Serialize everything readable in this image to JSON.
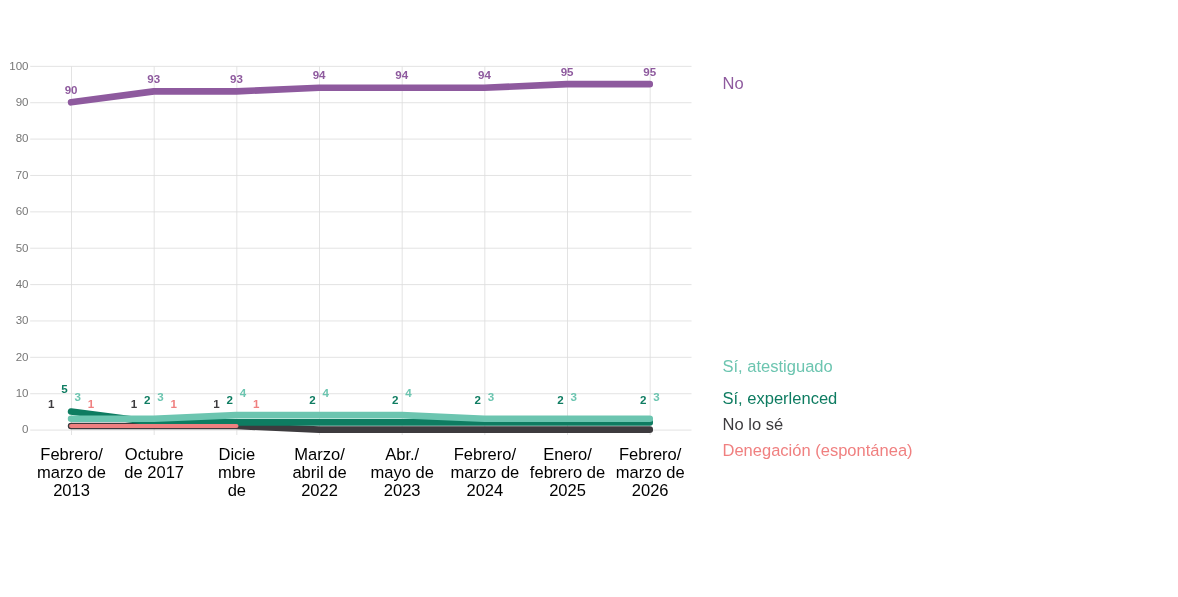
{
  "chart_data": {
    "type": "line",
    "categories": [
      "Febrero/\nmarzo de\n2013",
      "Octubre\nde 2017",
      "Dicie\nmbre\nde",
      "Marzo/\nabril de\n2022",
      "Abr./\nmayo de\n2023",
      "Febrero/\nmarzo de\n2024",
      "Enero/\nfebrero de\n2025",
      "Febrero/\nmarzo de\n2026"
    ],
    "series": [
      {
        "name": "No",
        "color": "#8e5a9e",
        "values": [
          90,
          93,
          93,
          94,
          94,
          94,
          95,
          95
        ],
        "value_labels": [
          "90",
          "93",
          "93",
          "94",
          "94",
          "94",
          "95",
          "95"
        ]
      },
      {
        "name": "No lo sé",
        "color": "#3d3b3e",
        "values": [
          1,
          1,
          1,
          0,
          0,
          0,
          0,
          0
        ],
        "value_labels": [
          "1",
          "1",
          "1",
          null,
          null,
          null,
          null,
          null
        ]
      },
      {
        "name": "Sí, experlenced",
        "color": "#0e7c61",
        "values": [
          5,
          2,
          2,
          2,
          2,
          2,
          2,
          2
        ],
        "value_labels": [
          "5",
          "2",
          "2",
          "2",
          "2",
          "2",
          "2",
          "2"
        ]
      },
      {
        "name": "Sí, atestiguado",
        "color": "#6cc5b0",
        "values": [
          3,
          3,
          4,
          4,
          4,
          3,
          3,
          3
        ],
        "value_labels": [
          "3",
          "3",
          "4",
          "4",
          "4",
          "3",
          "3",
          "3"
        ]
      },
      {
        "name": "Denegación (espontánea)",
        "color": "#f08080",
        "values": [
          1,
          1,
          1,
          null,
          null,
          null,
          null,
          null
        ],
        "value_labels": [
          "1",
          "1",
          "1",
          null,
          null,
          null,
          null,
          null
        ]
      }
    ],
    "ylim": [
      0,
      100
    ],
    "yticks": [
      0,
      10,
      20,
      30,
      40,
      50,
      60,
      70,
      80,
      90,
      100
    ],
    "grid": true,
    "legend": "right"
  }
}
